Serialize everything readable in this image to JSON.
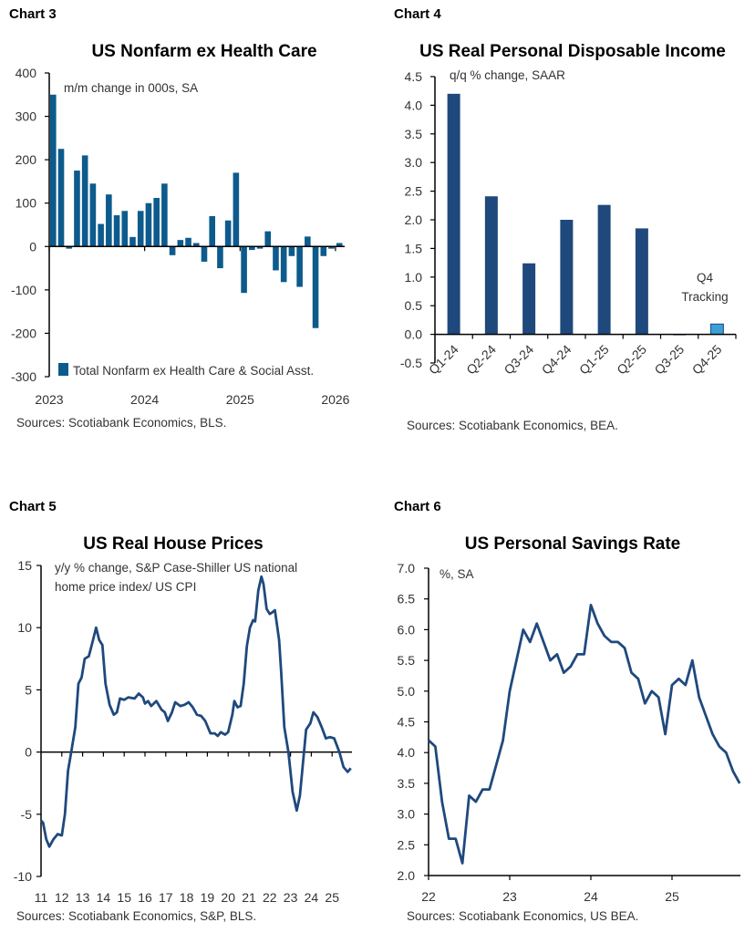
{
  "colors": {
    "bar3": "#0d5b8c",
    "navy": "#1f497d",
    "highlight": "#3b9fd8",
    "annot": "#3db4ea"
  },
  "chart_data": [
    {
      "id": "c3",
      "label": "Chart 3",
      "type": "bar",
      "title": "US Nonfarm ex Health Care",
      "subtitle": "m/m change in 000s, SA",
      "legend": "Total Nonfarm ex Health Care & Social Asst.",
      "legend_position": "bottom-left",
      "source": "Sources: Scotiabank Economics,  BLS.",
      "ylim": [
        -300,
        400
      ],
      "yticks": [
        "400",
        "300",
        "200",
        "100",
        "0",
        "-100",
        "-200",
        "-300"
      ],
      "xticks": [
        "2023",
        "2024",
        "2025",
        "2026"
      ],
      "x_start": "2023-01",
      "frequency": "monthly",
      "values": [
        350,
        225,
        -5,
        175,
        210,
        145,
        52,
        120,
        72,
        82,
        22,
        82,
        100,
        112,
        145,
        -20,
        15,
        20,
        8,
        -35,
        70,
        -50,
        60,
        170,
        -107,
        -8,
        -5,
        35,
        -55,
        -82,
        -22,
        -93,
        23,
        -188,
        -22,
        -5,
        8
      ]
    },
    {
      "id": "c4",
      "label": "Chart 4",
      "type": "bar",
      "title": "US Real Personal Disposable Income",
      "subtitle": "q/q % change, SAAR",
      "source": "Sources: Scotiabank Economics, BEA.",
      "annotation": [
        "Q4",
        "Tracking"
      ],
      "ylim": [
        -0.5,
        4.5
      ],
      "yticks": [
        "4.5",
        "4.0",
        "3.5",
        "3.0",
        "2.5",
        "2.0",
        "1.5",
        "1.0",
        "0.5",
        "0.0",
        "-0.5"
      ],
      "categories": [
        "Q1-24",
        "Q2-24",
        "Q3-24",
        "Q4-24",
        "Q1-25",
        "Q2-25",
        "Q3-25",
        "Q4-25"
      ],
      "values": [
        4.2,
        2.41,
        1.24,
        2.0,
        2.26,
        1.85,
        0.0,
        0.18
      ],
      "highlighted": [
        "Q4-25"
      ]
    },
    {
      "id": "c5",
      "label": "Chart 5",
      "type": "line",
      "title": "US Real House Prices",
      "subtitle": [
        "y/y % change, S&P Case-Shiller US national",
        "home price index/ US CPI"
      ],
      "source": "Sources: Scotiabank Economics, S&P, BLS.",
      "ylim": [
        -10,
        15
      ],
      "yticks": [
        "15",
        "10",
        "5",
        "0",
        "-5",
        "-10"
      ],
      "xticks": [
        "11",
        "12",
        "13",
        "14",
        "15",
        "16",
        "17",
        "18",
        "19",
        "20",
        "21",
        "22",
        "23",
        "24",
        "25"
      ],
      "x": [
        2011.0,
        2011.1,
        2011.25,
        2011.4,
        2011.6,
        2011.8,
        2012.0,
        2012.15,
        2012.3,
        2012.45,
        2012.65,
        2012.8,
        2012.95,
        2013.1,
        2013.3,
        2013.5,
        2013.65,
        2013.8,
        2013.95,
        2014.1,
        2014.3,
        2014.5,
        2014.65,
        2014.8,
        2015.0,
        2015.2,
        2015.5,
        2015.7,
        2015.9,
        2016.0,
        2016.15,
        2016.3,
        2016.55,
        2016.8,
        2016.95,
        2017.1,
        2017.3,
        2017.45,
        2017.7,
        2017.9,
        2018.1,
        2018.3,
        2018.5,
        2018.7,
        2018.9,
        2019.15,
        2019.35,
        2019.5,
        2019.65,
        2019.85,
        2020.0,
        2020.2,
        2020.3,
        2020.45,
        2020.6,
        2020.75,
        2020.9,
        2021.05,
        2021.2,
        2021.3,
        2021.45,
        2021.6,
        2021.7,
        2021.85,
        2022.0,
        2022.1,
        2022.25,
        2022.45,
        2022.55,
        2022.7,
        2022.9,
        2023.1,
        2023.3,
        2023.45,
        2023.65,
        2023.75,
        2023.95,
        2024.1,
        2024.3,
        2024.5,
        2024.7,
        2024.9,
        2025.1,
        2025.35,
        2025.55,
        2025.75,
        2025.9
      ],
      "y": [
        -5.5,
        -5.7,
        -7.0,
        -7.6,
        -7.0,
        -6.6,
        -6.7,
        -5.0,
        -1.5,
        0.0,
        2.0,
        5.5,
        6.0,
        7.5,
        7.7,
        9.0,
        10.0,
        9.0,
        8.6,
        5.5,
        3.8,
        3.0,
        3.2,
        4.3,
        4.2,
        4.4,
        4.3,
        4.7,
        4.4,
        3.9,
        4.1,
        3.7,
        4.1,
        3.4,
        3.2,
        2.5,
        3.2,
        4.0,
        3.7,
        3.8,
        4.0,
        3.6,
        3.0,
        2.9,
        2.5,
        1.5,
        1.5,
        1.3,
        1.6,
        1.4,
        1.6,
        3.0,
        4.1,
        3.6,
        3.7,
        5.5,
        8.5,
        10.0,
        10.6,
        10.5,
        13.0,
        14.1,
        13.5,
        11.5,
        11.1,
        11.2,
        11.4,
        9.0,
        6.5,
        2.0,
        0.0,
        -3.2,
        -4.7,
        -3.5,
        0.0,
        1.8,
        2.3,
        3.2,
        2.8,
        2.0,
        1.1,
        1.2,
        1.1,
        0.0,
        -1.2,
        -1.6,
        -1.3
      ]
    },
    {
      "id": "c6",
      "label": "Chart 6",
      "type": "line",
      "title": "US Personal Savings Rate",
      "subtitle": "%, SA",
      "source": "Sources: Scotiabank Economics, US BEA.",
      "ylim": [
        2.0,
        7.0
      ],
      "yticks": [
        "7.0",
        "6.5",
        "6.0",
        "5.5",
        "5.0",
        "4.5",
        "4.0",
        "3.5",
        "3.0",
        "2.5",
        "2.0"
      ],
      "xticks": [
        "22",
        "23",
        "24",
        "25"
      ],
      "x_start": "2022-01",
      "frequency": "monthly",
      "values": [
        4.2,
        4.1,
        3.2,
        2.6,
        2.6,
        2.2,
        3.3,
        3.2,
        3.4,
        3.4,
        3.8,
        4.2,
        5.0,
        5.5,
        6.0,
        5.8,
        6.1,
        5.8,
        5.5,
        5.6,
        5.3,
        5.4,
        5.6,
        5.6,
        6.4,
        6.1,
        5.9,
        5.8,
        5.8,
        5.7,
        5.3,
        5.2,
        4.8,
        5.0,
        4.9,
        4.3,
        5.1,
        5.2,
        5.1,
        5.5,
        4.9,
        4.6,
        4.3,
        4.1,
        4.0,
        3.7,
        3.5
      ]
    }
  ]
}
